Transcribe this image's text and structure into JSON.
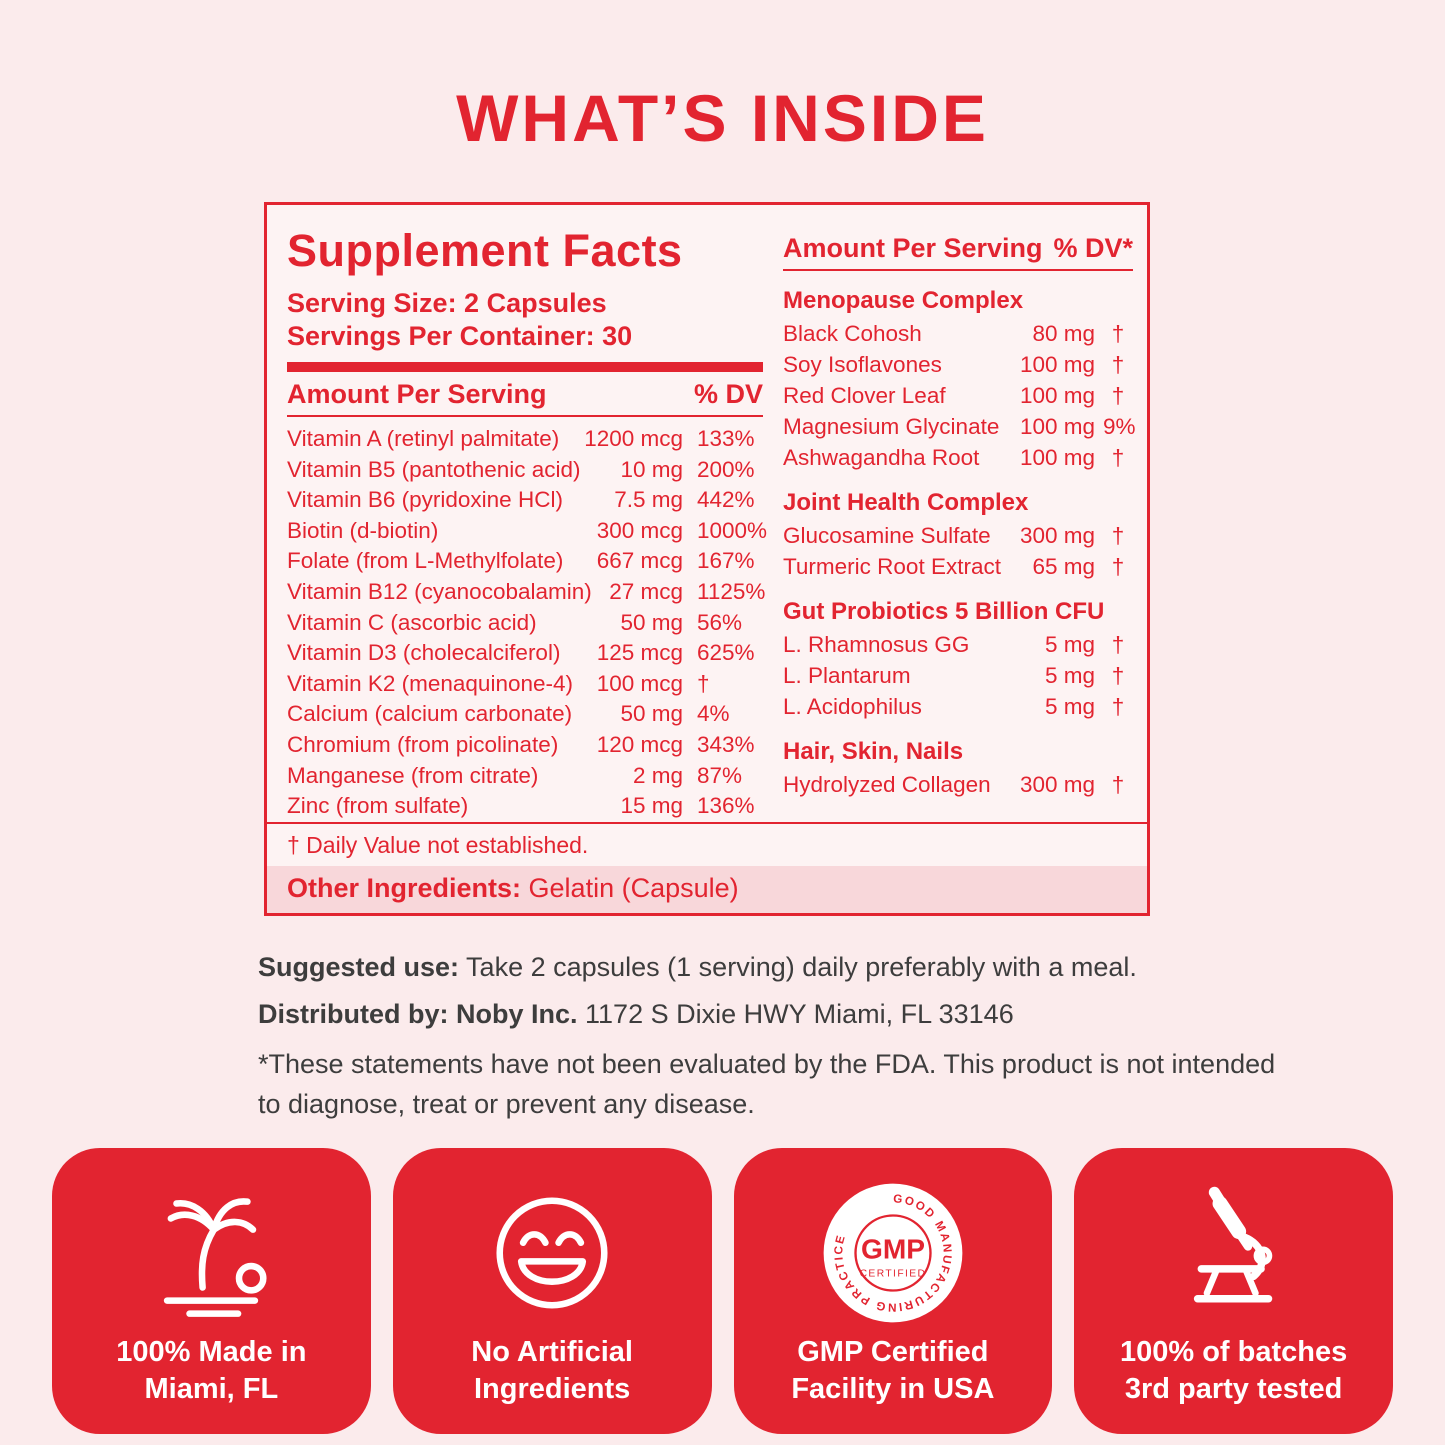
{
  "page": {
    "title": "WHAT’S INSIDE"
  },
  "colors": {
    "red": "#E22430",
    "background": "#FBEBEC",
    "panel_background": "#FDF3F3",
    "band_pink": "#F8D7DA",
    "text_dark": "#3D3D3D",
    "white": "#FFFFFF"
  },
  "panel": {
    "title": "Supplement Facts",
    "serving_size": "Serving Size: 2 Capsules",
    "servings_per_container": "Servings Per Container: 30",
    "left_header": {
      "amount": "Amount Per Serving",
      "dv": "% DV"
    },
    "left_rows": [
      {
        "label": "Vitamin A (retinyl palmitate)",
        "amount": "1200 mcg",
        "dv": "133%"
      },
      {
        "label": "Vitamin B5 (pantothenic acid)",
        "amount": "10 mg",
        "dv": "200%"
      },
      {
        "label": "Vitamin B6 (pyridoxine HCl)",
        "amount": "7.5 mg",
        "dv": "442%"
      },
      {
        "label": "Biotin (d-biotin)",
        "amount": "300 mcg",
        "dv": "1000%"
      },
      {
        "label": "Folate (from L-Methylfolate)",
        "amount": "667 mcg",
        "dv": "167%"
      },
      {
        "label": "Vitamin B12 (cyanocobalamin)",
        "amount": "27 mcg",
        "dv": "1125%"
      },
      {
        "label": "Vitamin C (ascorbic acid)",
        "amount": "50 mg",
        "dv": "56%"
      },
      {
        "label": "Vitamin D3 (cholecalciferol)",
        "amount": "125 mcg",
        "dv": "625%"
      },
      {
        "label": "Vitamin K2 (menaquinone-4)",
        "amount": "100 mcg",
        "dv": "†"
      },
      {
        "label": "Calcium (calcium carbonate)",
        "amount": "50 mg",
        "dv": "4%"
      },
      {
        "label": "Chromium (from picolinate)",
        "amount": "120 mcg",
        "dv": "343%"
      },
      {
        "label": "Manganese (from citrate)",
        "amount": "2 mg",
        "dv": "87%"
      },
      {
        "label": "Zinc (from sulfate)",
        "amount": "15 mg",
        "dv": "136%"
      }
    ],
    "right_header": {
      "amount": "Amount Per Serving",
      "dv": "% DV*"
    },
    "right_groups": [
      {
        "title": "Menopause Complex",
        "rows": [
          {
            "label": "Black Cohosh",
            "amount": "80 mg",
            "dv": "†"
          },
          {
            "label": "Soy Isoflavones",
            "amount": "100 mg",
            "dv": "†"
          },
          {
            "label": "Red Clover Leaf",
            "amount": "100 mg",
            "dv": "†"
          },
          {
            "label": "Magnesium Glycinate",
            "amount": "100 mg",
            "dv": "9%"
          },
          {
            "label": "Ashwagandha Root",
            "amount": "100 mg",
            "dv": "†"
          }
        ]
      },
      {
        "title": "Joint Health Complex",
        "rows": [
          {
            "label": "Glucosamine Sulfate",
            "amount": "300 mg",
            "dv": "†"
          },
          {
            "label": "Turmeric Root Extract",
            "amount": "65 mg",
            "dv": "†"
          }
        ]
      },
      {
        "title": "Gut Probiotics 5 Billion CFU",
        "rows": [
          {
            "label": "L. Rhamnosus GG",
            "amount": "5 mg",
            "dv": "†"
          },
          {
            "label": "L. Plantarum",
            "amount": "5 mg",
            "dv": "†"
          },
          {
            "label": "L. Acidophilus",
            "amount": "5 mg",
            "dv": "†"
          }
        ]
      },
      {
        "title": "Hair, Skin, Nails",
        "rows": [
          {
            "label": "Hydrolyzed Collagen",
            "amount": "300 mg",
            "dv": "†"
          }
        ]
      }
    ],
    "footnote": "† Daily Value not established.",
    "other_ingredients_label": "Other Ingredients:",
    "other_ingredients_value": " Gelatin (Capsule)"
  },
  "details": {
    "suggested_use_label": "Suggested use:",
    "suggested_use_text": "  Take 2 capsules (1 serving) daily preferably with a meal.",
    "distributed_label": "Distributed by: Noby Inc.",
    "distributed_text": " 1172 S Dixie HWY Miami, FL 33146",
    "disclaimer_line1": "*These statements have not been evaluated by the FDA. This product is not intended",
    "disclaimer_line2": "to diagnose, treat or prevent any disease."
  },
  "badges": [
    {
      "icon": "palm-tree-icon",
      "line1": "100% Made in",
      "line2": "Miami, FL"
    },
    {
      "icon": "smiley-icon",
      "line1": "No Artificial",
      "line2": "Ingredients"
    },
    {
      "icon": "gmp-badge-icon",
      "line1": "GMP Certified",
      "line2": "Facility in USA",
      "badge_text_center": "GMP",
      "badge_text_sub": "CERTIFIED",
      "badge_text_ring": "GOOD MANUFACTURING PRACTICE"
    },
    {
      "icon": "microscope-icon",
      "line1": "100% of batches",
      "line2": "3rd party tested"
    }
  ]
}
